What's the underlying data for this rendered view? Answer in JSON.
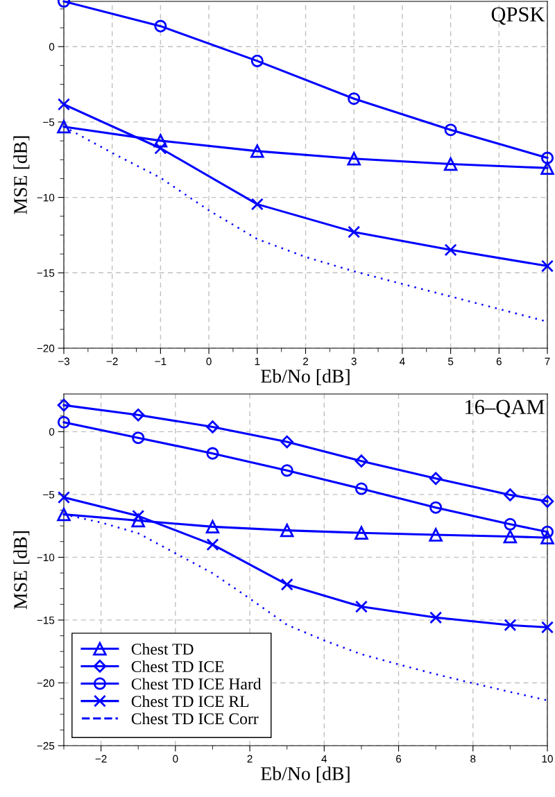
{
  "chart_data": [
    {
      "type": "line",
      "xlabel": "Eb/No [dB]",
      "ylabel": "MSE [dB]",
      "annotations": [
        "QPSK"
      ],
      "xlim": [
        -3,
        7
      ],
      "ylim": [
        -20,
        3
      ],
      "xticks": [
        -3,
        -2,
        -1,
        0,
        1,
        2,
        3,
        4,
        5,
        6,
        7
      ],
      "yticks": [
        -20,
        -15,
        -10,
        -5,
        0
      ],
      "grid": true,
      "legend": false,
      "line_style": "solid",
      "series": [
        {
          "color": "#0000ff",
          "marker": "triangle",
          "x": [
            -3,
            -1,
            1,
            3,
            5,
            7
          ],
          "values": [
            -5.31,
            -6.24,
            -6.93,
            -7.43,
            -7.79,
            -8.05
          ]
        },
        {
          "color": "#0000ff",
          "marker": "circle",
          "x": [
            -3,
            -1,
            1,
            3,
            5,
            7
          ],
          "values": [
            3.0,
            1.36,
            -0.95,
            -3.45,
            -5.52,
            -7.38
          ]
        },
        {
          "color": "#0000ff",
          "marker": "cross",
          "x": [
            -3,
            -1,
            1,
            3,
            5,
            7
          ],
          "values": [
            -3.83,
            -6.74,
            -10.45,
            -12.29,
            -13.48,
            -14.55
          ]
        },
        {
          "color": "#0000ff",
          "marker": "none",
          "line_style": "dotted",
          "x": [
            -3,
            -2,
            -1,
            0,
            1,
            2,
            3,
            4,
            5,
            6,
            7
          ],
          "values": [
            -5.3,
            -7.05,
            -8.7,
            -10.86,
            -12.76,
            -13.95,
            -14.9,
            -15.74,
            -16.57,
            -17.4,
            -18.24
          ]
        }
      ]
    },
    {
      "type": "line",
      "xlabel": "Eb/No [dB]",
      "ylabel": "MSE [dB]",
      "annotations": [
        "16–QAM"
      ],
      "xlim": [
        -3,
        10
      ],
      "ylim": [
        -25,
        3
      ],
      "xticks": [
        -2,
        0,
        2,
        4,
        6,
        8,
        10
      ],
      "yticks": [
        -25,
        -20,
        -15,
        -10,
        -5,
        0
      ],
      "grid": true,
      "legend": "bottom left",
      "line_style": "solid",
      "series": [
        {
          "name": "Chest TD",
          "color": "#0000ff",
          "marker": "triangle",
          "x": [
            -3,
            -1,
            1,
            3,
            5,
            7,
            9,
            10
          ],
          "values": [
            -6.59,
            -7.08,
            -7.57,
            -7.86,
            -8.06,
            -8.21,
            -8.35,
            -8.44
          ]
        },
        {
          "name": "Chest TD ICE",
          "color": "#0000ff",
          "marker": "diamond",
          "x": [
            -3,
            -1,
            1,
            3,
            5,
            7,
            9,
            10
          ],
          "values": [
            2.11,
            1.33,
            0.38,
            -0.81,
            -2.34,
            -3.73,
            -5.03,
            -5.55
          ]
        },
        {
          "name": "Chest TD ICE Hard",
          "color": "#0000ff",
          "marker": "circle",
          "x": [
            -3,
            -1,
            1,
            3,
            5,
            7,
            9,
            10
          ],
          "values": [
            0.75,
            -0.49,
            -1.73,
            -3.09,
            -4.54,
            -6.04,
            -7.37,
            -7.98
          ]
        },
        {
          "name": "Chest TD ICE RL",
          "color": "#0000ff",
          "marker": "cross",
          "x": [
            -3,
            -1,
            1,
            3,
            5,
            7,
            9,
            10
          ],
          "values": [
            -5.23,
            -6.71,
            -8.99,
            -12.17,
            -13.93,
            -14.8,
            -15.4,
            -15.58
          ]
        },
        {
          "name": "Chest TD ICE Corr",
          "color": "#0000ff",
          "marker": "none",
          "line_style": "dotted",
          "x": [
            -3,
            -2,
            -1,
            0,
            1,
            2,
            3,
            4,
            5,
            6,
            7,
            8,
            9,
            10
          ],
          "values": [
            -6.59,
            -7.23,
            -8.09,
            -9.68,
            -11.27,
            -13.29,
            -15.38,
            -16.62,
            -17.72,
            -18.53,
            -19.31,
            -20.03,
            -20.72,
            -21.39
          ]
        }
      ]
    }
  ]
}
